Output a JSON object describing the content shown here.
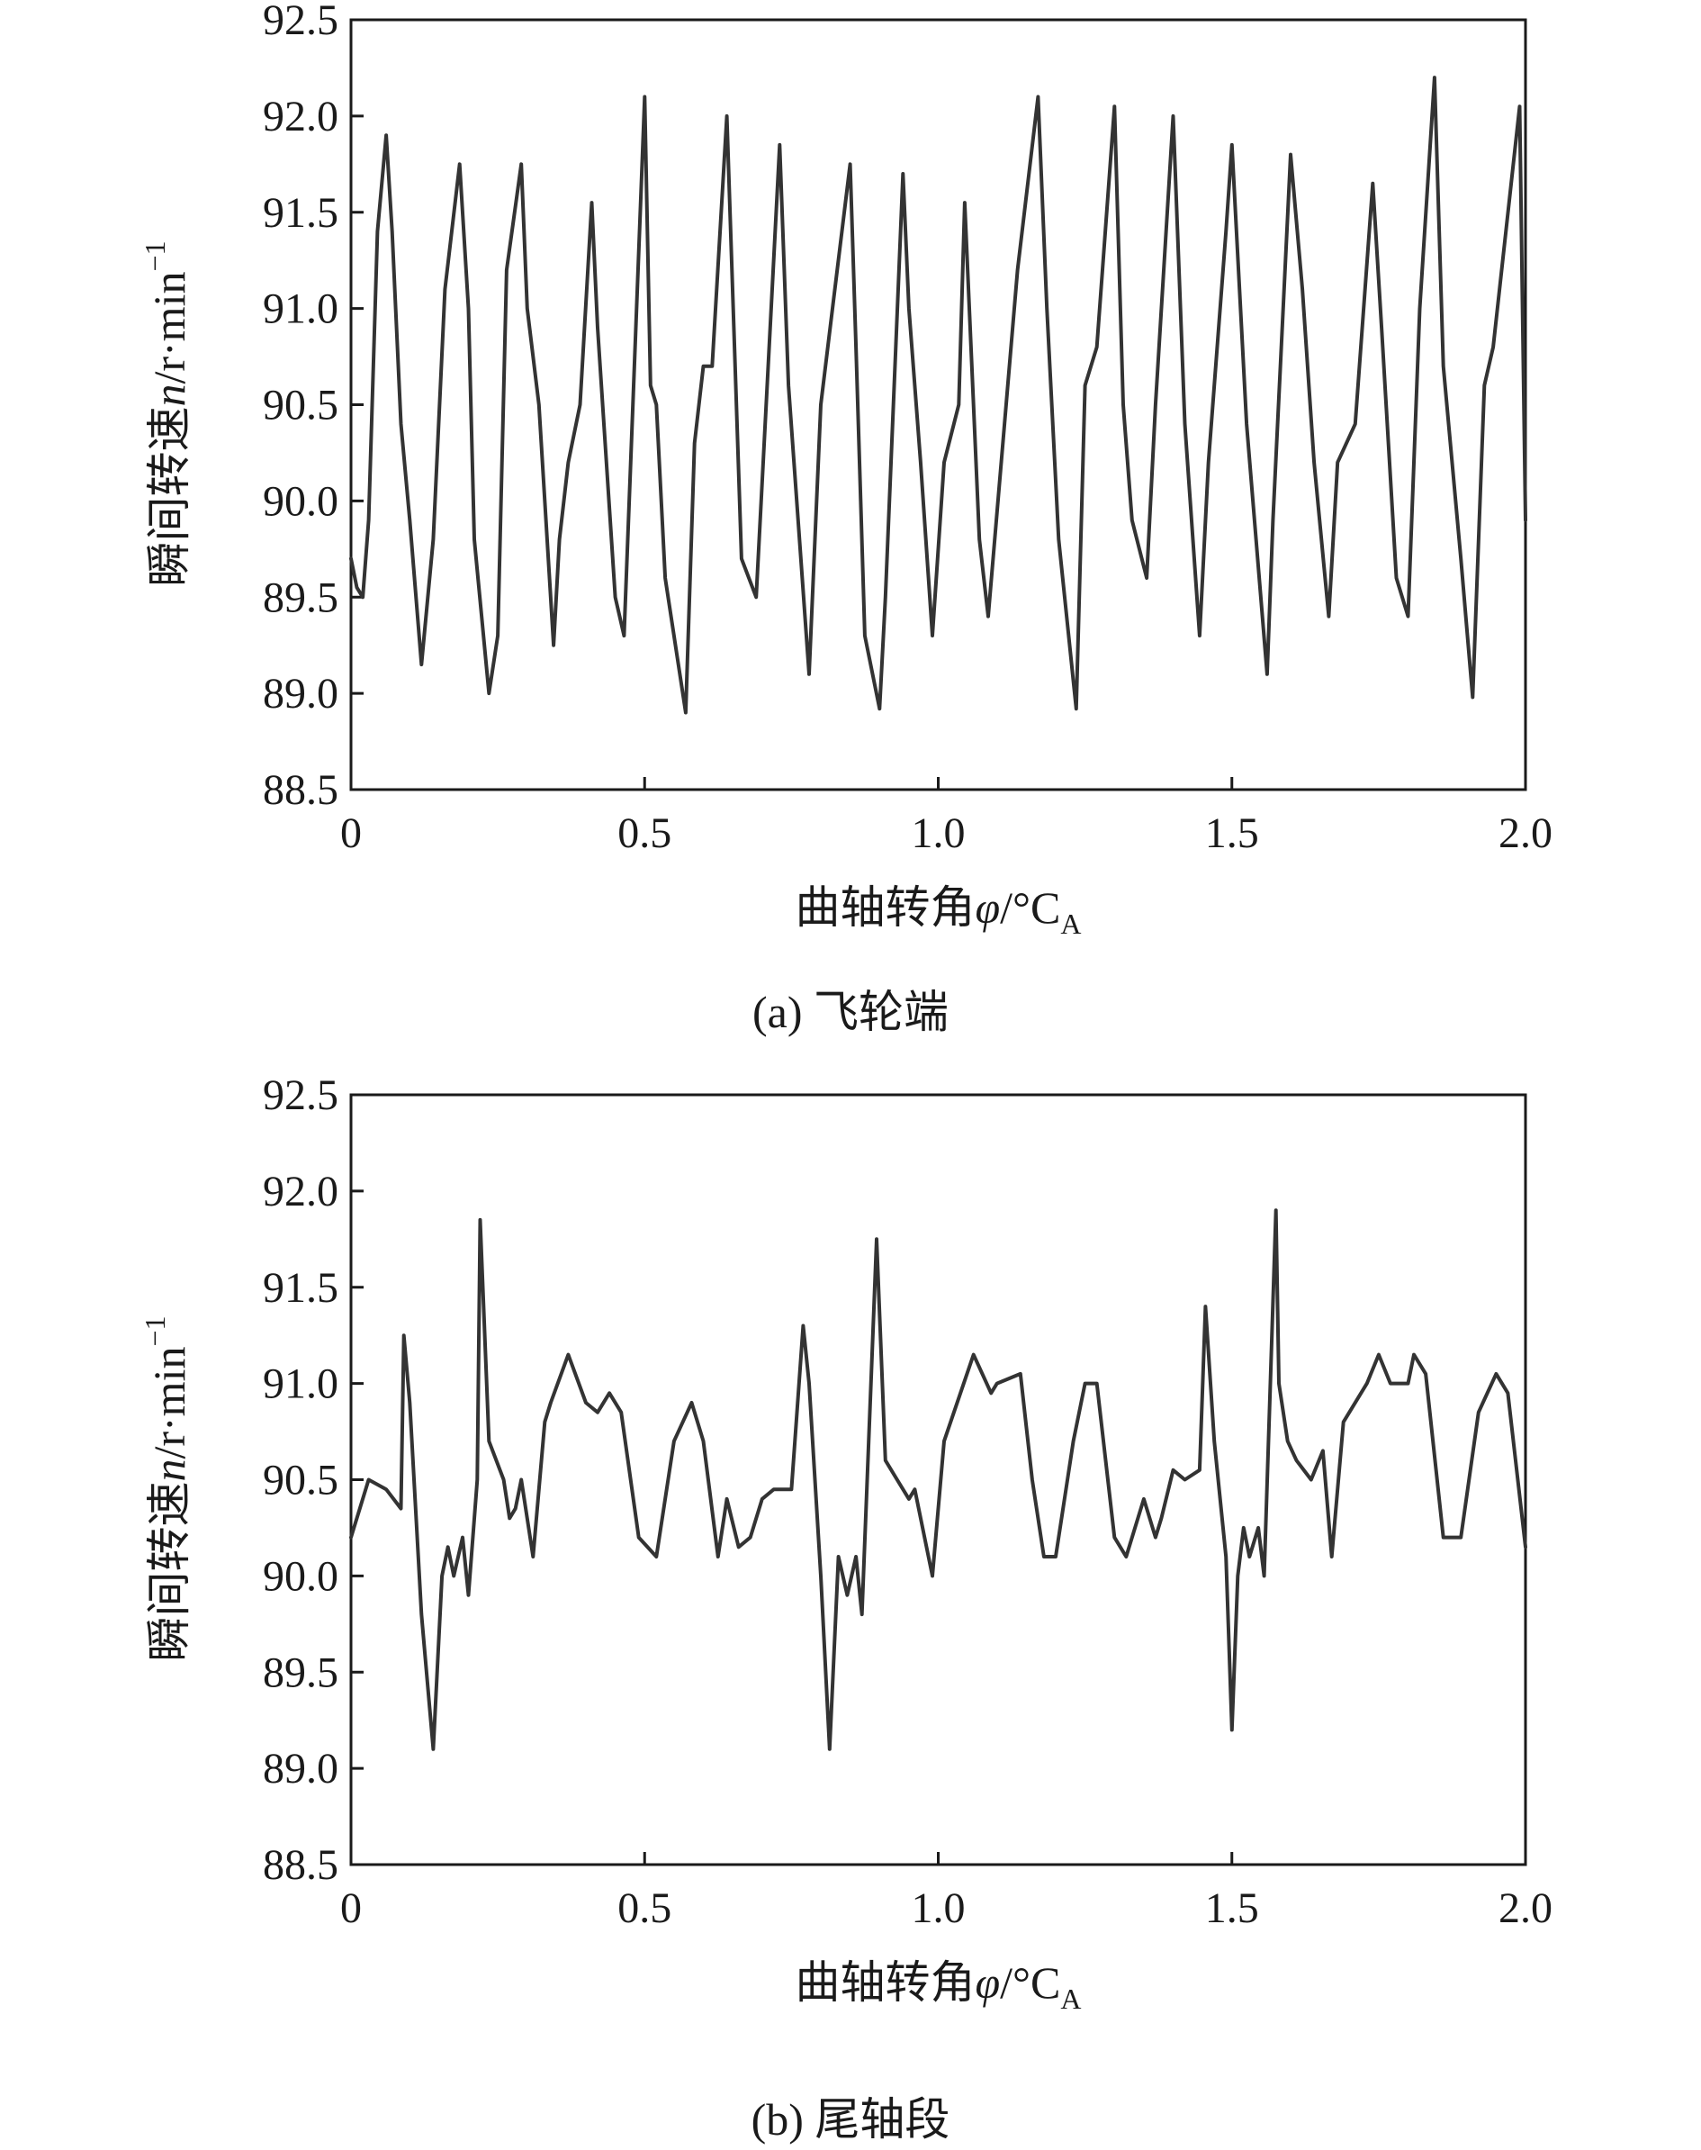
{
  "chart_data": [
    {
      "type": "line",
      "panel_label": "(a) 飞轮端",
      "xlabel": "曲轴转角φ/°C_A",
      "xlabel_parts": {
        "text": "曲轴转角",
        "var": "φ",
        "unit": "/°C",
        "sub": "A"
      },
      "ylabel": "瞬间转速n/r·min^-1",
      "ylabel_parts": {
        "text": "瞬间转速",
        "var": "n",
        "unit": "/r·min",
        "sup": "−1"
      },
      "xlim": [
        0,
        2.0
      ],
      "ylim": [
        88.5,
        92.5
      ],
      "xticks": [
        "0",
        "0.5",
        "1.0",
        "1.5",
        "2.0"
      ],
      "yticks": [
        "88.5",
        "89.0",
        "89.5",
        "90.0",
        "90.5",
        "91.0",
        "91.5",
        "92.0",
        "92.5"
      ],
      "grid": false,
      "series": [
        {
          "color": "#333333",
          "x": [
            0,
            0.01,
            0.02,
            0.03,
            0.045,
            0.06,
            0.07,
            0.085,
            0.1,
            0.12,
            0.14,
            0.16,
            0.185,
            0.2,
            0.21,
            0.235,
            0.25,
            0.265,
            0.29,
            0.3,
            0.32,
            0.345,
            0.355,
            0.37,
            0.39,
            0.41,
            0.42,
            0.45,
            0.465,
            0.5,
            0.51,
            0.52,
            0.535,
            0.57,
            0.585,
            0.6,
            0.615,
            0.64,
            0.665,
            0.69,
            0.73,
            0.745,
            0.78,
            0.79,
            0.8,
            0.82,
            0.85,
            0.86,
            0.875,
            0.9,
            0.91,
            0.94,
            0.95,
            0.97,
            0.99,
            1.01,
            1.035,
            1.045,
            1.07,
            1.085,
            1.11,
            1.135,
            1.17,
            1.185,
            1.205,
            1.235,
            1.25,
            1.27,
            1.3,
            1.315,
            1.33,
            1.355,
            1.37,
            1.4,
            1.42,
            1.445,
            1.46,
            1.49,
            1.5,
            1.525,
            1.56,
            1.57,
            1.6,
            1.62,
            1.64,
            1.665,
            1.68,
            1.71,
            1.74,
            1.755,
            1.78,
            1.8,
            1.82,
            1.845,
            1.86,
            1.89,
            1.91,
            1.93,
            1.945,
            1.99,
            2.0
          ],
          "y": [
            89.7,
            89.55,
            89.5,
            89.9,
            91.4,
            91.9,
            91.4,
            90.4,
            89.9,
            89.15,
            89.8,
            91.1,
            91.75,
            91.0,
            89.8,
            89.0,
            89.3,
            91.2,
            91.75,
            91.0,
            90.5,
            89.25,
            89.8,
            90.2,
            90.5,
            91.55,
            90.9,
            89.5,
            89.3,
            92.1,
            90.6,
            90.5,
            89.6,
            88.9,
            90.3,
            90.7,
            90.7,
            92.0,
            89.7,
            89.5,
            91.85,
            90.6,
            89.1,
            89.8,
            90.5,
            91.0,
            91.75,
            90.8,
            89.3,
            88.92,
            89.5,
            91.7,
            91.0,
            90.2,
            89.3,
            90.2,
            90.5,
            91.55,
            89.8,
            89.4,
            90.3,
            91.2,
            92.1,
            91.0,
            89.8,
            88.92,
            90.6,
            90.8,
            92.05,
            90.5,
            89.9,
            89.6,
            90.5,
            92.0,
            90.4,
            89.3,
            90.2,
            91.4,
            91.85,
            90.4,
            89.1,
            89.9,
            91.8,
            91.1,
            90.2,
            89.4,
            90.2,
            90.4,
            91.65,
            90.9,
            89.6,
            89.4,
            91.0,
            92.2,
            90.7,
            89.7,
            88.98,
            90.6,
            90.8,
            92.05,
            89.9
          ]
        }
      ]
    },
    {
      "type": "line",
      "panel_label": "(b) 尾轴段",
      "xlabel": "曲轴转角φ/°C_A",
      "xlabel_parts": {
        "text": "曲轴转角",
        "var": "φ",
        "unit": "/°C",
        "sub": "A"
      },
      "ylabel": "瞬间转速n/r·min^-1",
      "ylabel_parts": {
        "text": "瞬间转速",
        "var": "n",
        "unit": "/r·min",
        "sup": "−1"
      },
      "xlim": [
        0,
        2.0
      ],
      "ylim": [
        88.5,
        92.5
      ],
      "xticks": [
        "0",
        "0.5",
        "1.0",
        "1.5",
        "2.0"
      ],
      "yticks": [
        "88.5",
        "89.0",
        "89.5",
        "90.0",
        "90.5",
        "91.0",
        "91.5",
        "92.0",
        "92.5"
      ],
      "grid": false,
      "series": [
        {
          "color": "#333333",
          "x": [
            0,
            0.01,
            0.03,
            0.06,
            0.085,
            0.09,
            0.1,
            0.12,
            0.14,
            0.155,
            0.165,
            0.175,
            0.19,
            0.2,
            0.215,
            0.22,
            0.235,
            0.26,
            0.27,
            0.28,
            0.29,
            0.31,
            0.33,
            0.34,
            0.37,
            0.4,
            0.42,
            0.44,
            0.46,
            0.49,
            0.52,
            0.55,
            0.58,
            0.6,
            0.625,
            0.64,
            0.66,
            0.68,
            0.7,
            0.72,
            0.75,
            0.77,
            0.78,
            0.8,
            0.815,
            0.83,
            0.845,
            0.86,
            0.87,
            0.895,
            0.91,
            0.93,
            0.95,
            0.96,
            0.99,
            1.01,
            1.06,
            1.09,
            1.1,
            1.14,
            1.16,
            1.18,
            1.2,
            1.23,
            1.25,
            1.27,
            1.3,
            1.32,
            1.35,
            1.37,
            1.38,
            1.4,
            1.42,
            1.445,
            1.455,
            1.47,
            1.49,
            1.5,
            1.51,
            1.52,
            1.53,
            1.545,
            1.555,
            1.575,
            1.58,
            1.595,
            1.61,
            1.635,
            1.655,
            1.67,
            1.69,
            1.73,
            1.75,
            1.77,
            1.8,
            1.81,
            1.83,
            1.86,
            1.89,
            1.92,
            1.95,
            1.97,
            2.0
          ],
          "y": [
            90.2,
            90.3,
            90.5,
            90.45,
            90.35,
            91.25,
            90.9,
            89.8,
            89.1,
            90.0,
            90.15,
            90.0,
            90.2,
            89.9,
            90.5,
            91.85,
            90.7,
            90.5,
            90.3,
            90.35,
            90.5,
            90.1,
            90.8,
            90.9,
            91.15,
            90.9,
            90.85,
            90.95,
            90.85,
            90.2,
            90.1,
            90.7,
            90.9,
            90.7,
            90.1,
            90.4,
            90.15,
            90.2,
            90.4,
            90.45,
            90.45,
            91.3,
            91.0,
            90.0,
            89.1,
            90.1,
            89.9,
            90.1,
            89.8,
            91.75,
            90.6,
            90.5,
            90.4,
            90.45,
            90.0,
            90.7,
            91.15,
            90.95,
            91.0,
            91.05,
            90.5,
            90.1,
            90.1,
            90.7,
            91.0,
            91.0,
            90.2,
            90.1,
            90.4,
            90.2,
            90.3,
            90.55,
            90.5,
            90.55,
            91.4,
            90.7,
            90.1,
            89.2,
            90.0,
            90.25,
            90.1,
            90.25,
            90.0,
            91.9,
            91.0,
            90.7,
            90.6,
            90.5,
            90.65,
            90.1,
            90.8,
            91.0,
            91.15,
            91.0,
            91.0,
            91.15,
            91.05,
            90.2,
            90.2,
            90.85,
            91.05,
            90.95,
            90.15
          ]
        }
      ]
    }
  ]
}
